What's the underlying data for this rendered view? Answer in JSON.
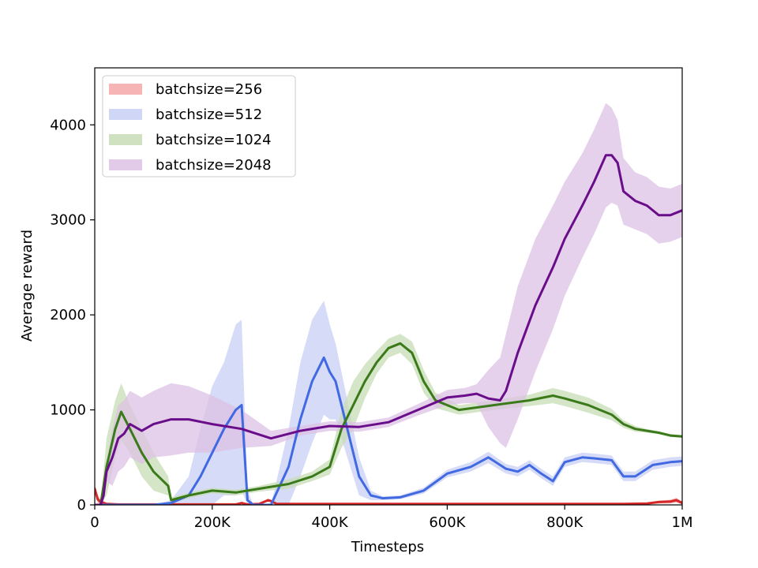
{
  "chart_data": {
    "type": "line",
    "title": "",
    "xlabel": "Timesteps",
    "ylabel": "Average reward",
    "xlim": [
      0,
      1000000
    ],
    "ylim": [
      0,
      4600
    ],
    "x_ticks": [
      0,
      200000,
      400000,
      600000,
      800000,
      1000000
    ],
    "x_tick_labels": [
      "0",
      "200K",
      "400K",
      "600K",
      "800K",
      "1M"
    ],
    "y_ticks": [
      0,
      1000,
      2000,
      3000,
      4000
    ],
    "y_tick_labels": [
      "0",
      "1000",
      "2000",
      "3000",
      "4000"
    ],
    "grid": false,
    "legend_position": "upper-left",
    "series": [
      {
        "name": "batchsize=256",
        "color": "#d62728",
        "band_color": "#f4a7a7",
        "x": [
          0,
          5000,
          10000,
          20000,
          40000,
          100000,
          200000,
          240000,
          250000,
          260000,
          280000,
          295000,
          300000,
          310000,
          400000,
          600000,
          800000,
          900000,
          940000,
          960000,
          980000,
          990000,
          1000000
        ],
        "y": [
          170,
          60,
          30,
          10,
          5,
          5,
          5,
          5,
          20,
          5,
          10,
          50,
          40,
          10,
          10,
          10,
          10,
          10,
          15,
          30,
          35,
          50,
          20
        ],
        "band": [
          40,
          40,
          30,
          15,
          10,
          5,
          5,
          5,
          10,
          5,
          5,
          15,
          15,
          5,
          5,
          5,
          5,
          5,
          10,
          15,
          20,
          25,
          15
        ]
      },
      {
        "name": "batchsize=512",
        "color": "#4169e1",
        "band_color": "#c8cff5",
        "x": [
          0,
          20000,
          50000,
          100000,
          130000,
          160000,
          180000,
          200000,
          220000,
          240000,
          250000,
          260000,
          270000,
          300000,
          330000,
          350000,
          370000,
          390000,
          400000,
          410000,
          430000,
          450000,
          470000,
          490000,
          520000,
          560000,
          600000,
          640000,
          670000,
          700000,
          720000,
          740000,
          760000,
          780000,
          800000,
          830000,
          850000,
          880000,
          900000,
          920000,
          950000,
          980000,
          1000000
        ],
        "y": [
          0,
          0,
          0,
          0,
          20,
          100,
          300,
          550,
          800,
          1000,
          1050,
          50,
          0,
          0,
          400,
          900,
          1300,
          1550,
          1400,
          1300,
          800,
          300,
          100,
          70,
          80,
          150,
          330,
          400,
          500,
          380,
          350,
          420,
          330,
          250,
          450,
          500,
          490,
          470,
          300,
          300,
          420,
          450,
          460
        ],
        "band": [
          0,
          0,
          0,
          0,
          30,
          200,
          500,
          700,
          700,
          900,
          900,
          100,
          0,
          0,
          400,
          600,
          650,
          600,
          500,
          400,
          300,
          200,
          50,
          20,
          20,
          30,
          40,
          50,
          60,
          50,
          50,
          50,
          50,
          50,
          50,
          50,
          50,
          50,
          50,
          50,
          50,
          50,
          50
        ]
      },
      {
        "name": "batchsize=1024",
        "color": "#3a7a1a",
        "band_color": "#c7dcb6",
        "x": [
          0,
          10000,
          20000,
          35000,
          45000,
          60000,
          80000,
          100000,
          125000,
          130000,
          160000,
          200000,
          240000,
          280000,
          330000,
          370000,
          400000,
          420000,
          440000,
          460000,
          480000,
          500000,
          520000,
          540000,
          560000,
          580000,
          620000,
          680000,
          740000,
          780000,
          800000,
          840000,
          860000,
          880000,
          900000,
          920000,
          940000,
          960000,
          980000,
          1000000
        ],
        "y": [
          0,
          0,
          400,
          800,
          980,
          800,
          550,
          350,
          200,
          50,
          100,
          150,
          130,
          170,
          220,
          300,
          400,
          800,
          1050,
          1300,
          1500,
          1650,
          1700,
          1600,
          1300,
          1100,
          1000,
          1050,
          1100,
          1150,
          1120,
          1050,
          1000,
          950,
          850,
          800,
          780,
          760,
          730,
          720
        ],
        "band": [
          0,
          0,
          300,
          300,
          300,
          250,
          250,
          200,
          100,
          30,
          30,
          30,
          30,
          30,
          50,
          50,
          80,
          200,
          250,
          180,
          120,
          100,
          100,
          120,
          120,
          80,
          50,
          50,
          60,
          80,
          80,
          80,
          70,
          60,
          40,
          30,
          20,
          15,
          15,
          15
        ]
      },
      {
        "name": "batchsize=2048",
        "color": "#6a0d8a",
        "band_color": "#dcc2e4",
        "x": [
          0,
          10000,
          15000,
          20000,
          30000,
          40000,
          50000,
          60000,
          80000,
          100000,
          130000,
          160000,
          200000,
          250000,
          300000,
          350000,
          400000,
          450000,
          500000,
          550000,
          600000,
          630000,
          650000,
          670000,
          690000,
          700000,
          720000,
          750000,
          780000,
          800000,
          830000,
          850000,
          870000,
          880000,
          890000,
          900000,
          920000,
          940000,
          960000,
          980000,
          1000000
        ],
        "y": [
          0,
          0,
          100,
          350,
          500,
          700,
          750,
          850,
          780,
          850,
          900,
          900,
          850,
          800,
          700,
          780,
          830,
          820,
          870,
          1000,
          1130,
          1150,
          1170,
          1120,
          1100,
          1200,
          1600,
          2100,
          2500,
          2800,
          3150,
          3400,
          3680,
          3680,
          3600,
          3300,
          3200,
          3150,
          3050,
          3050,
          3100
        ],
        "band": [
          0,
          0,
          0,
          100,
          300,
          350,
          350,
          350,
          350,
          350,
          380,
          350,
          300,
          200,
          80,
          50,
          50,
          50,
          50,
          60,
          80,
          80,
          100,
          300,
          450,
          600,
          700,
          700,
          650,
          600,
          550,
          550,
          550,
          500,
          450,
          350,
          300,
          300,
          300,
          280,
          280
        ]
      }
    ]
  }
}
